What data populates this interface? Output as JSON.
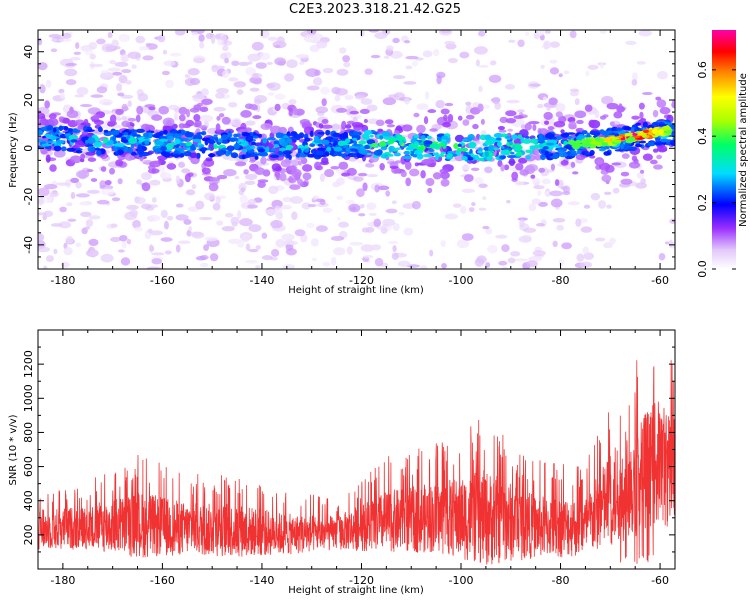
{
  "title": "C2E3.2023.318.21.42.G25",
  "chart_data": [
    {
      "type": "heatmap",
      "xlabel": "Height of straight line (km)",
      "ylabel": "Frequency (Hz)",
      "xlim": [
        -185,
        -57
      ],
      "ylim": [
        -50,
        49
      ],
      "xticks": [
        -180,
        -160,
        -140,
        -120,
        -100,
        -80,
        -60
      ],
      "yticks": [
        -40,
        -20,
        0,
        20,
        40
      ],
      "colorbar": {
        "label": "Normalized spectral amplitude",
        "range": [
          0,
          0.72
        ],
        "ticks": [
          0.0,
          0.2,
          0.4,
          0.6
        ]
      },
      "ridge": {
        "description_points_x": [
          -185,
          -160,
          -140,
          -120,
          -100,
          -80,
          -70,
          -60
        ],
        "description_points_y": [
          4,
          2,
          1,
          2,
          0,
          1,
          3,
          7
        ],
        "peak_amplitude": 0.7,
        "peak_x": -65
      }
    },
    {
      "type": "line",
      "xlabel": "Height of straight line (km)",
      "ylabel": "SNR (10 * v/v)",
      "xlim": [
        -185,
        -57
      ],
      "ylim": [
        0,
        1400
      ],
      "xticks": [
        -180,
        -160,
        -140,
        -120,
        -100,
        -80,
        -60
      ],
      "yticks": [
        200,
        400,
        600,
        800,
        1000,
        1200
      ],
      "series": [
        {
          "color": "#f03232",
          "envelope_x": [
            -185,
            -175,
            -165,
            -155,
            -145,
            -135,
            -125,
            -115,
            -105,
            -95,
            -85,
            -75,
            -70,
            -65,
            -60,
            -57
          ],
          "envelope_baseline": [
            220,
            230,
            240,
            220,
            210,
            190,
            200,
            260,
            280,
            270,
            230,
            230,
            380,
            500,
            600,
            500
          ],
          "envelope_peak": [
            480,
            520,
            680,
            560,
            560,
            460,
            420,
            660,
            740,
            900,
            640,
            620,
            1000,
            1280,
            1400,
            1300
          ]
        }
      ]
    }
  ]
}
